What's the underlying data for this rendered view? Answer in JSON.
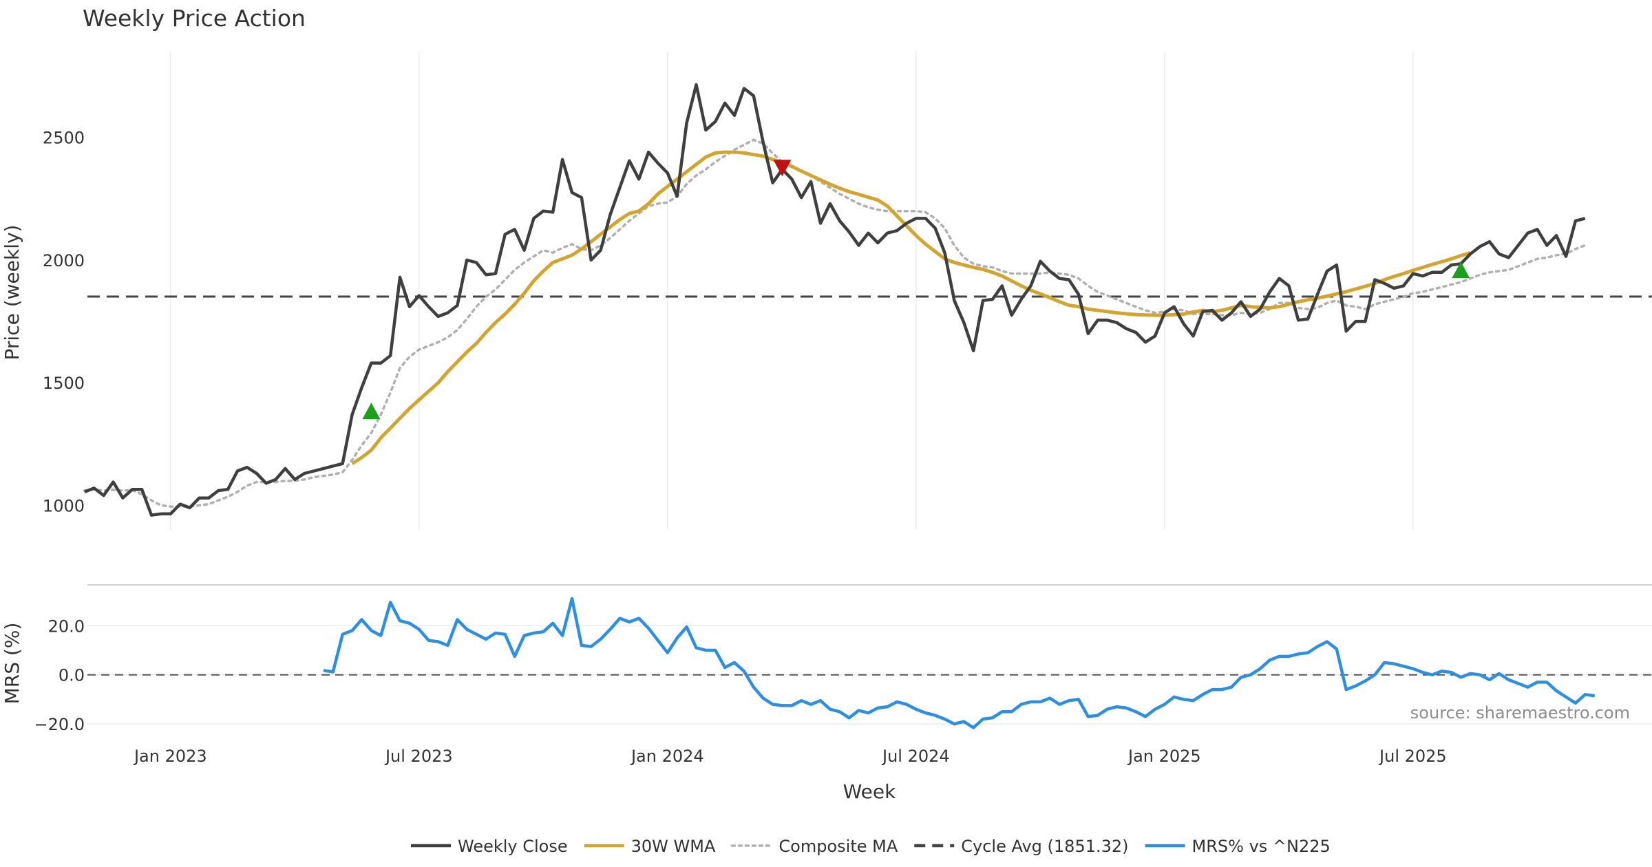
{
  "chart_data": {
    "type": "line",
    "title": "Weekly Price Action",
    "xlabel": "Week",
    "source": "source: sharemaestro.com",
    "colors": {
      "close": "#3f3f3f",
      "wma": "#d4a52c",
      "composite": "#b0b0b0",
      "cycle": "#444444",
      "mrs": "#2b8fe6",
      "buy": "#1ca01c",
      "sell": "#c01010"
    },
    "x_ticks": [
      {
        "label": "Jan 2023",
        "week": 10
      },
      {
        "label": "Jul 2023",
        "week": 36
      },
      {
        "label": "Jan 2024",
        "week": 62
      },
      {
        "label": "Jul 2024",
        "week": 88
      },
      {
        "label": "Jan 2025",
        "week": 114
      },
      {
        "label": "Jul 2025",
        "week": 140
      }
    ],
    "x_range": [
      1.3,
      165
    ],
    "price_panel": {
      "ylabel": "Price (weekly)",
      "ylim": [
        900,
        2850
      ],
      "yticks": [
        1000,
        1500,
        2000,
        2500
      ],
      "cycle_avg": 1851.32,
      "close": {
        "start_week": 1,
        "values": [
          1055,
          1070,
          1040,
          1095,
          1030,
          1065,
          1065,
          960,
          965,
          965,
          1005,
          990,
          1030,
          1030,
          1060,
          1065,
          1140,
          1155,
          1130,
          1090,
          1105,
          1150,
          1105,
          1130,
          1140,
          1150,
          1160,
          1170,
          1370,
          1480,
          1580,
          1580,
          1610,
          1930,
          1810,
          1855,
          1810,
          1770,
          1785,
          1815,
          2000,
          1990,
          1940,
          1945,
          2105,
          2125,
          2040,
          2170,
          2200,
          2195,
          2410,
          2275,
          2255,
          2000,
          2040,
          2185,
          2295,
          2405,
          2330,
          2440,
          2395,
          2355,
          2260,
          2560,
          2715,
          2530,
          2565,
          2640,
          2590,
          2700,
          2670,
          2480,
          2315,
          2370,
          2330,
          2255,
          2320,
          2150,
          2230,
          2160,
          2115,
          2060,
          2110,
          2070,
          2110,
          2120,
          2150,
          2170,
          2170,
          2130,
          2030,
          1835,
          1745,
          1630,
          1835,
          1840,
          1895,
          1775,
          1840,
          1895,
          1995,
          1955,
          1925,
          1920,
          1860,
          1700,
          1755,
          1755,
          1745,
          1720,
          1705,
          1665,
          1690,
          1785,
          1810,
          1740,
          1690,
          1790,
          1795,
          1755,
          1785,
          1830,
          1770,
          1800,
          1870,
          1925,
          1895,
          1755,
          1760,
          1860,
          1955,
          1980,
          1710,
          1750,
          1750,
          1920,
          1905,
          1885,
          1895,
          1945,
          1935,
          1950,
          1950,
          1980,
          1985,
          2025,
          2055,
          2075,
          2025,
          2010,
          2060,
          2110,
          2125,
          2060,
          2100,
          2015,
          2160,
          2170
        ]
      },
      "wma": {
        "start_week": 29,
        "values": [
          1170,
          1195,
          1225,
          1275,
          1315,
          1355,
          1395,
          1430,
          1465,
          1500,
          1545,
          1585,
          1625,
          1660,
          1705,
          1745,
          1780,
          1820,
          1865,
          1915,
          1955,
          1990,
          2005,
          2020,
          2045,
          2075,
          2105,
          2135,
          2165,
          2190,
          2200,
          2230,
          2270,
          2300,
          2330,
          2360,
          2390,
          2420,
          2437,
          2440,
          2440,
          2437,
          2430,
          2424,
          2410,
          2398,
          2382,
          2363,
          2345,
          2327,
          2309,
          2293,
          2279,
          2268,
          2256,
          2245,
          2220,
          2180,
          2140,
          2100,
          2065,
          2035,
          2005,
          1990,
          1980,
          1970,
          1962,
          1950,
          1935,
          1915,
          1895,
          1877,
          1862,
          1847,
          1830,
          1816,
          1810,
          1800,
          1795,
          1790,
          1785,
          1781,
          1778,
          1776,
          1775,
          1775,
          1777,
          1780,
          1788,
          1795,
          1790,
          1795,
          1805,
          1815,
          1810,
          1807,
          1805,
          1810,
          1820,
          1830,
          1838,
          1845,
          1853,
          1862,
          1871,
          1882,
          1893,
          1905,
          1920,
          1933,
          1945,
          1958,
          1970,
          1982,
          1993,
          2005,
          2018,
          2030
        ]
      },
      "composite": {
        "start_week": 1,
        "values": [
          1060,
          1065,
          1060,
          1063,
          1060,
          1062,
          1045,
          1020,
          1000,
          995,
          995,
          995,
          1000,
          1005,
          1020,
          1035,
          1055,
          1080,
          1095,
          1095,
          1095,
          1100,
          1100,
          1105,
          1115,
          1120,
          1125,
          1135,
          1185,
          1245,
          1295,
          1370,
          1460,
          1560,
          1605,
          1635,
          1650,
          1665,
          1685,
          1715,
          1760,
          1810,
          1850,
          1880,
          1920,
          1960,
          1990,
          2015,
          2040,
          2030,
          2050,
          2065,
          2045,
          2040,
          2060,
          2090,
          2125,
          2160,
          2190,
          2220,
          2230,
          2235,
          2260,
          2310,
          2345,
          2370,
          2400,
          2425,
          2450,
          2470,
          2490,
          2475,
          2435,
          2400,
          2380,
          2360,
          2345,
          2320,
          2295,
          2270,
          2250,
          2230,
          2215,
          2205,
          2200,
          2200,
          2200,
          2200,
          2195,
          2170,
          2130,
          2060,
          2010,
          1985,
          1975,
          1970,
          1955,
          1945,
          1945,
          1945,
          1945,
          1950,
          1945,
          1940,
          1925,
          1895,
          1870,
          1855,
          1840,
          1825,
          1810,
          1795,
          1785,
          1790,
          1800,
          1795,
          1780,
          1780,
          1780,
          1775,
          1775,
          1785,
          1780,
          1785,
          1800,
          1825,
          1825,
          1805,
          1800,
          1805,
          1825,
          1835,
          1815,
          1810,
          1800,
          1820,
          1830,
          1840,
          1850,
          1865,
          1870,
          1880,
          1890,
          1900,
          1910,
          1925,
          1940,
          1950,
          1955,
          1960,
          1975,
          1990,
          2005,
          2010,
          2020,
          2025,
          2045,
          2060
        ]
      },
      "signals": [
        {
          "type": "buy",
          "week": 31,
          "value": 1385
        },
        {
          "type": "sell",
          "week": 74,
          "value": 2375
        },
        {
          "type": "buy",
          "week": 145,
          "value": 1960
        }
      ]
    },
    "mrs_panel": {
      "ylabel": "MRS (%)",
      "ylim": [
        -25,
        31
      ],
      "yticks": [
        -20.0,
        0.0,
        20.0
      ],
      "ytick_labels": [
        "−20.0",
        "0.0",
        "20.0"
      ],
      "mrs": {
        "start_week": 26,
        "values": [
          1.8,
          1.2,
          16.5,
          18,
          22.5,
          18,
          16,
          29.5,
          22,
          21,
          18.5,
          14,
          13.5,
          12,
          22.5,
          18.5,
          16.5,
          14.5,
          17,
          16.5,
          7.5,
          16,
          17,
          17.5,
          21,
          16,
          31,
          12,
          11.5,
          14.5,
          18.5,
          23,
          21.5,
          23,
          19,
          14,
          9,
          15,
          19.5,
          11,
          10,
          10,
          3,
          5,
          1.5,
          -5,
          -9.5,
          -12,
          -12.5,
          -12.5,
          -10.5,
          -12,
          -10.5,
          -14,
          -15,
          -17.5,
          -14.5,
          -15.5,
          -13.5,
          -13,
          -11,
          -12,
          -14,
          -15.5,
          -16.5,
          -18,
          -20,
          -19,
          -21.5,
          -18,
          -17.5,
          -15,
          -15,
          -12,
          -11,
          -11,
          -9.5,
          -12,
          -10.5,
          -10,
          -17,
          -16.5,
          -14,
          -13,
          -13.5,
          -15,
          -17,
          -14,
          -12,
          -9,
          -10,
          -10.5,
          -8,
          -6,
          -6,
          -5,
          -1,
          0,
          2.5,
          6,
          7.5,
          7.5,
          8.5,
          9,
          11.5,
          13.5,
          10.5,
          -6,
          -4.5,
          -2.5,
          0,
          5,
          4.5,
          3.5,
          2.5,
          1,
          0,
          1.5,
          1,
          -1,
          0.5,
          0,
          -2,
          0.5,
          -2,
          -3.5,
          -5,
          -3,
          -3,
          -6.5,
          -9,
          -11.5,
          -8,
          -8.5
        ]
      },
      "zero_line": 0
    },
    "legend": [
      {
        "key": "close",
        "label": "Weekly Close",
        "style": "solid"
      },
      {
        "key": "wma",
        "label": "30W WMA",
        "style": "solid"
      },
      {
        "key": "composite",
        "label": "Composite MA",
        "style": "dotted"
      },
      {
        "key": "cycle",
        "label": "Cycle Avg (1851.32)",
        "style": "dashed"
      },
      {
        "key": "mrs",
        "label": "MRS% vs ^N225",
        "style": "solid"
      }
    ]
  }
}
